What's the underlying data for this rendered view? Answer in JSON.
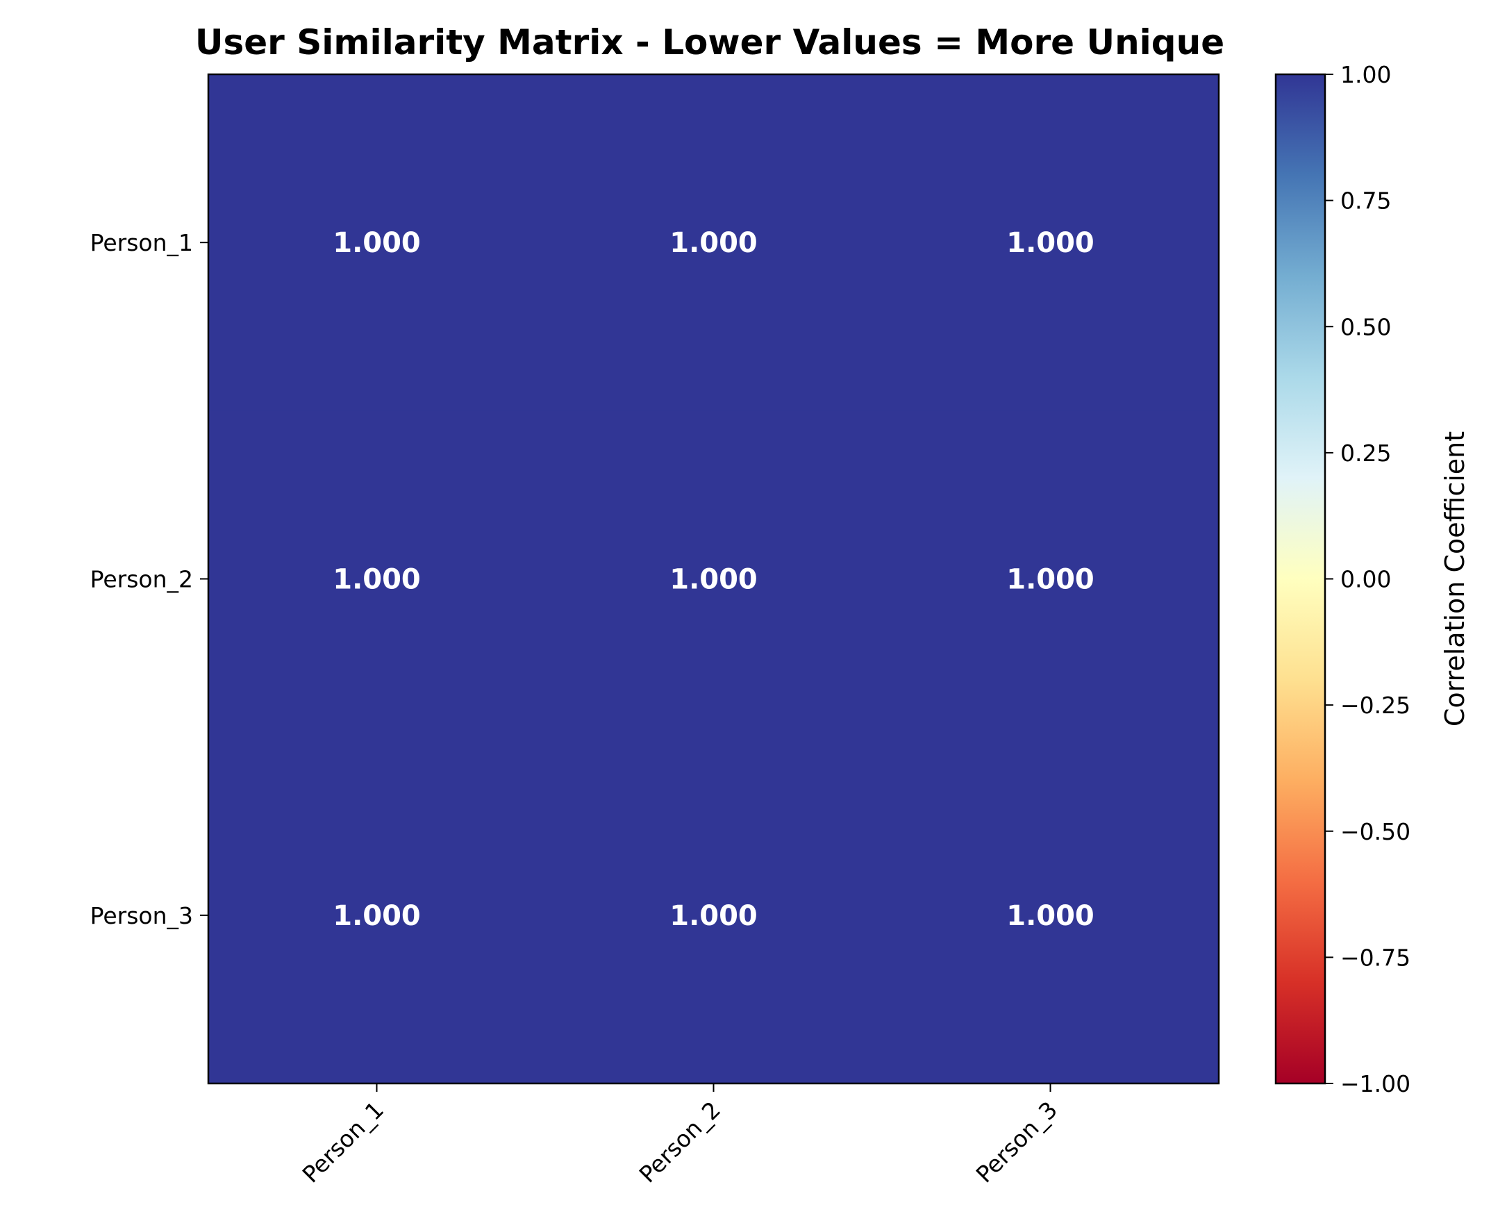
{
  "chart_data": {
    "type": "heatmap",
    "title": "User Similarity Matrix - Lower Values = More Unique",
    "rows": [
      "Person_1",
      "Person_2",
      "Person_3"
    ],
    "columns": [
      "Person_1",
      "Person_2",
      "Person_3"
    ],
    "values": [
      [
        1.0,
        1.0,
        1.0
      ],
      [
        1.0,
        1.0,
        1.0
      ],
      [
        1.0,
        1.0,
        1.0
      ]
    ],
    "cell_labels": [
      [
        "1.000",
        "1.000",
        "1.000"
      ],
      [
        "1.000",
        "1.000",
        "1.000"
      ],
      [
        "1.000",
        "1.000",
        "1.000"
      ]
    ],
    "colorbar": {
      "label": "Correlation Coefficient",
      "range": [
        -1.0,
        1.0
      ],
      "ticks": [
        1.0,
        0.75,
        0.5,
        0.25,
        0.0,
        -0.25,
        -0.5,
        -0.75,
        -1.0
      ],
      "tick_labels": [
        "1.00",
        "0.75",
        "0.50",
        "0.25",
        "0.00",
        "−0.25",
        "−0.50",
        "−0.75",
        "−1.00"
      ],
      "colormap": "RdYlBu",
      "colors": [
        "#a50026",
        "#d73027",
        "#f46d43",
        "#fdae61",
        "#fee090",
        "#ffffbf",
        "#e0f3f8",
        "#abd9e9",
        "#74add1",
        "#4575b4",
        "#313695"
      ]
    },
    "x_tick_rotation_deg": 45,
    "grid": false
  }
}
